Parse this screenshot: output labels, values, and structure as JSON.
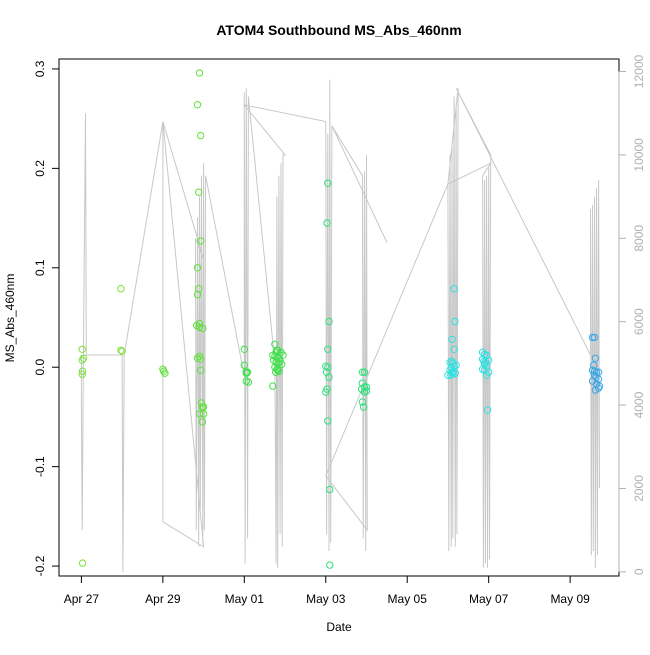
{
  "chart_data": {
    "type": "scatter",
    "title": "ATOM4 Southbound MS_Abs_460nm",
    "xlabel": "Date",
    "ylabel": "MS_Abs_460nm",
    "x_ticks": [
      "Apr 27",
      "Apr 29",
      "May 01",
      "May 03",
      "May 05",
      "May 07",
      "May 09"
    ],
    "x_tick_days": [
      0,
      2,
      4,
      6,
      8,
      10,
      12
    ],
    "xlim_days": [
      -0.55,
      13.2
    ],
    "ylim": [
      -0.21,
      0.31
    ],
    "y_ticks": [
      -0.2,
      -0.1,
      0.0,
      0.1,
      0.2,
      0.3
    ],
    "y_tick_labels": [
      "-0.2",
      "-0.1",
      "0.0",
      "0.1",
      "0.2",
      "0.3"
    ],
    "y2lim": [
      -100,
      12300
    ],
    "y2_ticks": [
      0,
      2000,
      4000,
      6000,
      8000,
      10000,
      12000
    ],
    "y2_tick_labels": [
      "0",
      "2000",
      "4000",
      "6000",
      "8000",
      "10000",
      "12000"
    ],
    "grid": false,
    "colors": {
      "axis": "#000000",
      "secondary_axis": "#b0b0b0",
      "secondary_line": "#c8c8c8"
    },
    "series": [
      {
        "color": "#7be23a",
        "points": [
          [
            0.02,
            0.018
          ],
          [
            0.02,
            0.007
          ],
          [
            0.05,
            0.009
          ],
          [
            0.03,
            -0.004
          ],
          [
            0.02,
            -0.007
          ],
          [
            0.03,
            -0.197
          ],
          [
            0.97,
            0.079
          ],
          [
            0.97,
            0.017
          ],
          [
            1.0,
            0.016
          ]
        ]
      },
      {
        "color": "#5ee23a",
        "points": [
          [
            2.0,
            -0.002
          ],
          [
            2.02,
            -0.004
          ],
          [
            2.05,
            -0.006
          ],
          [
            2.85,
            0.264
          ],
          [
            2.88,
            0.176
          ],
          [
            2.85,
            0.1
          ],
          [
            2.88,
            0.079
          ],
          [
            2.85,
            0.073
          ],
          [
            2.9,
            0.296
          ],
          [
            2.93,
            0.233
          ],
          [
            2.93,
            0.127
          ],
          [
            2.83,
            0.042
          ],
          [
            2.9,
            0.044
          ],
          [
            2.98,
            0.039
          ],
          [
            2.9,
            0.04
          ],
          [
            2.85,
            0.009
          ],
          [
            2.9,
            0.011
          ],
          [
            2.92,
            0.008
          ],
          [
            2.93,
            -0.003
          ],
          [
            2.95,
            -0.036
          ],
          [
            2.97,
            -0.04
          ],
          [
            3.0,
            -0.04
          ],
          [
            2.9,
            -0.047
          ],
          [
            3.0,
            -0.047
          ],
          [
            2.97,
            -0.055
          ]
        ]
      },
      {
        "color": "#3ee24a",
        "points": [
          [
            4.0,
            0.018
          ],
          [
            4.0,
            0.002
          ],
          [
            4.05,
            -0.005
          ],
          [
            4.05,
            -0.006
          ],
          [
            4.08,
            -0.005
          ],
          [
            4.05,
            -0.014
          ],
          [
            4.1,
            -0.015
          ],
          [
            4.75,
            0.023
          ],
          [
            4.8,
            0.017
          ],
          [
            4.78,
            0.015
          ],
          [
            4.82,
            0.017
          ],
          [
            4.9,
            0.015
          ],
          [
            4.7,
            0.012
          ],
          [
            4.75,
            0.011
          ],
          [
            4.8,
            0.01
          ],
          [
            4.85,
            0.009
          ],
          [
            4.95,
            0.012
          ],
          [
            4.72,
            0.007
          ],
          [
            4.78,
            0.005
          ],
          [
            4.83,
            0.004
          ],
          [
            4.88,
            0.006
          ],
          [
            4.92,
            0.003
          ],
          [
            4.75,
            0.0
          ],
          [
            4.8,
            -0.002
          ],
          [
            4.85,
            -0.004
          ],
          [
            4.77,
            -0.005
          ],
          [
            4.82,
            -0.003
          ],
          [
            4.7,
            -0.019
          ]
        ]
      },
      {
        "color": "#2ee27a",
        "points": [
          [
            6.05,
            0.185
          ],
          [
            6.03,
            0.145
          ],
          [
            6.08,
            0.046
          ],
          [
            6.05,
            0.018
          ],
          [
            6.0,
            0.001
          ],
          [
            6.05,
            0.0
          ],
          [
            6.02,
            -0.005
          ],
          [
            6.08,
            -0.01
          ],
          [
            6.03,
            -0.022
          ],
          [
            6.0,
            -0.025
          ],
          [
            6.05,
            -0.054
          ],
          [
            6.1,
            -0.123
          ],
          [
            6.1,
            -0.199
          ],
          [
            6.9,
            -0.005
          ],
          [
            6.95,
            -0.005
          ],
          [
            6.9,
            -0.016
          ],
          [
            6.95,
            -0.02
          ],
          [
            7.0,
            -0.02
          ],
          [
            6.88,
            -0.022
          ],
          [
            6.95,
            -0.025
          ],
          [
            6.9,
            -0.035
          ],
          [
            6.93,
            -0.04
          ],
          [
            7.0,
            -0.024
          ]
        ]
      },
      {
        "color": "#2ee2e2",
        "points": [
          [
            9.15,
            0.079
          ],
          [
            9.17,
            0.046
          ],
          [
            9.1,
            0.028
          ],
          [
            9.15,
            0.018
          ],
          [
            9.05,
            0.005
          ],
          [
            9.1,
            0.006
          ],
          [
            9.12,
            0.004
          ],
          [
            9.08,
            0.0
          ],
          [
            9.15,
            0.001
          ],
          [
            9.2,
            0.002
          ],
          [
            9.05,
            -0.003
          ],
          [
            9.1,
            -0.005
          ],
          [
            9.13,
            -0.004
          ],
          [
            9.18,
            -0.006
          ],
          [
            9.0,
            -0.008
          ],
          [
            9.07,
            -0.008
          ],
          [
            9.12,
            -0.007
          ],
          [
            9.85,
            0.015
          ],
          [
            9.9,
            0.013
          ],
          [
            9.95,
            0.012
          ],
          [
            9.85,
            0.008
          ],
          [
            9.88,
            0.006
          ],
          [
            9.92,
            0.005
          ],
          [
            10.0,
            0.007
          ],
          [
            9.9,
            0.003
          ],
          [
            9.95,
            0.001
          ],
          [
            9.85,
            -0.002
          ],
          [
            9.9,
            -0.003
          ],
          [
            10.0,
            -0.005
          ],
          [
            9.95,
            -0.008
          ],
          [
            9.97,
            -0.043
          ]
        ]
      },
      {
        "color": "#3aa8e8",
        "points": [
          [
            12.55,
            0.03
          ],
          [
            12.6,
            0.03
          ],
          [
            12.62,
            0.009
          ],
          [
            12.58,
            0.002
          ],
          [
            12.55,
            -0.003
          ],
          [
            12.6,
            -0.004
          ],
          [
            12.65,
            -0.005
          ],
          [
            12.7,
            -0.005
          ],
          [
            12.6,
            -0.008
          ],
          [
            12.63,
            -0.01
          ],
          [
            12.7,
            -0.012
          ],
          [
            12.55,
            -0.014
          ],
          [
            12.65,
            -0.017
          ],
          [
            12.72,
            -0.019
          ],
          [
            12.7,
            -0.021
          ],
          [
            12.62,
            -0.023
          ]
        ]
      }
    ],
    "secondary_series": {
      "points": [
        [
          0.0,
          5200
        ],
        [
          0.0,
          4000
        ],
        [
          0.02,
          1000
        ],
        [
          0.05,
          5200
        ],
        [
          0.1,
          11000
        ],
        [
          0.12,
          5200
        ],
        [
          0.2,
          5200
        ],
        [
          1.0,
          5200
        ],
        [
          1.02,
          0
        ],
        [
          1.05,
          5200
        ],
        [
          2.0,
          10800
        ],
        [
          2.0,
          1200
        ],
        [
          3.0,
          600
        ],
        [
          2.0,
          10800
        ],
        [
          3.0,
          7500
        ],
        [
          2.8,
          8000
        ],
        [
          2.82,
          1000
        ],
        [
          2.85,
          8500
        ],
        [
          2.88,
          600
        ],
        [
          2.9,
          9000
        ],
        [
          2.92,
          1500
        ],
        [
          2.95,
          9500
        ],
        [
          2.98,
          700
        ],
        [
          3.0,
          9800
        ],
        [
          3.02,
          1000
        ],
        [
          3.05,
          9500
        ],
        [
          4.0,
          4700
        ],
        [
          4.0,
          11500
        ],
        [
          4.02,
          200
        ],
        [
          4.05,
          11600
        ],
        [
          4.08,
          800
        ],
        [
          4.1,
          11400
        ],
        [
          4.75,
          5000
        ],
        [
          4.78,
          200
        ],
        [
          4.8,
          9000
        ],
        [
          4.82,
          100
        ],
        [
          4.85,
          9500
        ],
        [
          4.88,
          900
        ],
        [
          4.9,
          9800
        ],
        [
          4.93,
          600
        ],
        [
          4.95,
          10000
        ],
        [
          5.0,
          10000
        ],
        [
          4.0,
          11200
        ],
        [
          6.0,
          10800
        ],
        [
          6.02,
          900
        ],
        [
          6.05,
          10500
        ],
        [
          6.08,
          500
        ],
        [
          6.1,
          11800
        ],
        [
          6.12,
          700
        ],
        [
          6.15,
          10700
        ],
        [
          7.5,
          7900
        ],
        [
          6.15,
          10700
        ],
        [
          6.9,
          9500
        ],
        [
          6.92,
          800
        ],
        [
          6.95,
          9600
        ],
        [
          6.98,
          500
        ],
        [
          7.0,
          10000
        ],
        [
          7.02,
          1000
        ],
        [
          6.0,
          2300
        ],
        [
          9.0,
          9300
        ],
        [
          9.02,
          500
        ],
        [
          9.05,
          10000
        ],
        [
          9.08,
          600
        ],
        [
          9.1,
          10200
        ],
        [
          9.12,
          800
        ],
        [
          9.15,
          11400
        ],
        [
          9.18,
          600
        ],
        [
          9.2,
          11200
        ],
        [
          9.22,
          900
        ],
        [
          9.25,
          11600
        ],
        [
          9.0,
          9300
        ],
        [
          10.05,
          9800
        ],
        [
          9.85,
          9500
        ],
        [
          9.87,
          100
        ],
        [
          9.9,
          9400
        ],
        [
          9.92,
          200
        ],
        [
          9.95,
          9500
        ],
        [
          9.97,
          100
        ],
        [
          10.0,
          9700
        ],
        [
          10.02,
          300
        ],
        [
          10.05,
          10000
        ],
        [
          9.2,
          11600
        ],
        [
          12.5,
          5200
        ],
        [
          12.5,
          8700
        ],
        [
          12.52,
          400
        ],
        [
          12.55,
          8800
        ],
        [
          12.57,
          500
        ],
        [
          12.6,
          9000
        ],
        [
          12.62,
          100
        ],
        [
          12.65,
          9200
        ],
        [
          12.67,
          400
        ],
        [
          12.7,
          9400
        ],
        [
          12.72,
          2000
        ]
      ]
    }
  }
}
